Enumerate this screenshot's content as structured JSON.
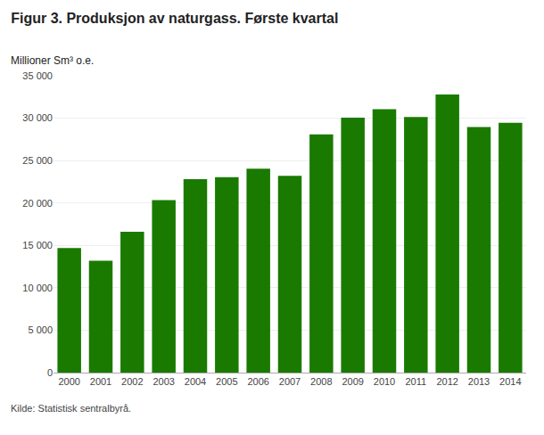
{
  "chart_data": {
    "type": "bar",
    "title": "Figur 3. Produksjon av naturgass. Første kvartal",
    "ylabel": "Millioner Sm³ o.e.",
    "annotations": [
      "Kilde: Statistisk sentralbyrå."
    ],
    "categories": [
      "2000",
      "2001",
      "2002",
      "2003",
      "2004",
      "2005",
      "2006",
      "2007",
      "2008",
      "2009",
      "2010",
      "2011",
      "2012",
      "2013",
      "2014"
    ],
    "values": [
      14700,
      13200,
      16600,
      20350,
      22800,
      23050,
      24050,
      23200,
      28100,
      30050,
      31050,
      30150,
      32800,
      28950,
      29450
    ],
    "color": "#1a7a00",
    "ylim": [
      0,
      35000
    ],
    "yticks": [
      0,
      {
        "value": 5000,
        "label": "5 000"
      },
      {
        "value": 10000,
        "label": "10 000"
      },
      {
        "value": 15000,
        "label": "15 000"
      },
      {
        "value": 20000,
        "label": "20 000"
      },
      {
        "value": 25000,
        "label": "25 000"
      },
      {
        "value": 30000,
        "label": "30 000"
      },
      {
        "value": 35000,
        "label": "35 000"
      }
    ],
    "grid": true
  }
}
